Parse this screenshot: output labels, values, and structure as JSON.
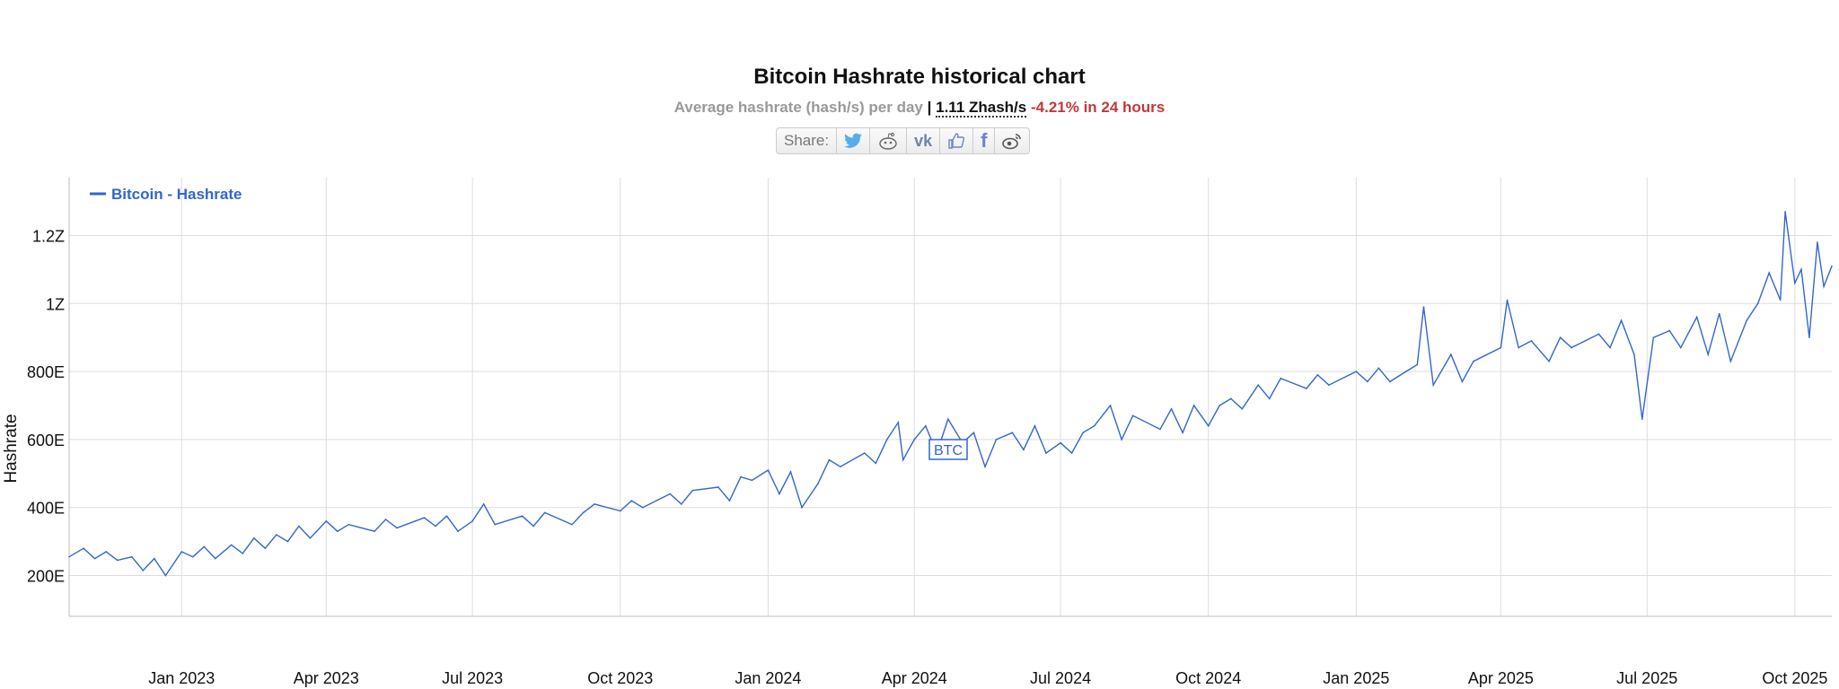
{
  "header": {
    "title": "Bitcoin Hashrate historical chart",
    "subtitle_label": "Average hashrate (hash/s) per day",
    "separator": "|",
    "current_value": "1.11 Zhash/s",
    "change": "-4.21% in 24 hours",
    "change_color": "#c0393b"
  },
  "share": {
    "label": "Share:",
    "icons": [
      "twitter-icon",
      "reddit-icon",
      "vk-icon",
      "like-icon",
      "facebook-icon",
      "weibo-icon"
    ]
  },
  "chart_data": {
    "type": "line",
    "title": "Bitcoin Hashrate historical chart",
    "ylabel": "Hashrate",
    "xlabel": "",
    "legend": {
      "position": "top-left",
      "entries": [
        "Bitcoin - Hashrate"
      ]
    },
    "grid": true,
    "line_color": "#3366cc",
    "y_unit": "EH/s",
    "ylim": [
      80,
      1370
    ],
    "xlim": [
      "2022-10-23",
      "2025-10-24"
    ],
    "y_ticks": [
      200,
      400,
      600,
      800,
      1000,
      1200
    ],
    "y_tick_labels": [
      "200E",
      "400E",
      "600E",
      "800E",
      "1Z",
      "1.2Z"
    ],
    "x_ticks": [
      "2023-01-01",
      "2023-04-01",
      "2023-07-01",
      "2023-10-01",
      "2024-01-01",
      "2024-04-01",
      "2024-07-01",
      "2024-10-01",
      "2025-01-01",
      "2025-04-01",
      "2025-07-01",
      "2025-10-01"
    ],
    "x_tick_labels": [
      "Jan 2023",
      "Apr 2023",
      "Jul 2023",
      "Oct 2023",
      "Jan 2024",
      "Apr 2024",
      "Jul 2024",
      "Oct 2024",
      "Jan 2025",
      "Apr 2025",
      "Jul 2025",
      "Oct 2025"
    ],
    "annotation": "BTC",
    "series": [
      {
        "name": "Bitcoin - Hashrate",
        "points": [
          [
            "2022-10-23",
            255
          ],
          [
            "2022-11-01",
            280
          ],
          [
            "2022-11-08",
            250
          ],
          [
            "2022-11-15",
            270
          ],
          [
            "2022-11-22",
            245
          ],
          [
            "2022-12-01",
            255
          ],
          [
            "2022-12-08",
            215
          ],
          [
            "2022-12-15",
            250
          ],
          [
            "2022-12-22",
            200
          ],
          [
            "2023-01-01",
            270
          ],
          [
            "2023-01-08",
            255
          ],
          [
            "2023-01-15",
            285
          ],
          [
            "2023-01-22",
            250
          ],
          [
            "2023-02-01",
            290
          ],
          [
            "2023-02-08",
            265
          ],
          [
            "2023-02-15",
            310
          ],
          [
            "2023-02-22",
            280
          ],
          [
            "2023-03-01",
            320
          ],
          [
            "2023-03-08",
            300
          ],
          [
            "2023-03-15",
            345
          ],
          [
            "2023-03-22",
            310
          ],
          [
            "2023-04-01",
            360
          ],
          [
            "2023-04-08",
            330
          ],
          [
            "2023-04-15",
            350
          ],
          [
            "2023-05-01",
            330
          ],
          [
            "2023-05-08",
            365
          ],
          [
            "2023-05-15",
            340
          ],
          [
            "2023-06-01",
            370
          ],
          [
            "2023-06-08",
            345
          ],
          [
            "2023-06-15",
            375
          ],
          [
            "2023-06-22",
            330
          ],
          [
            "2023-07-01",
            360
          ],
          [
            "2023-07-08",
            410
          ],
          [
            "2023-07-15",
            350
          ],
          [
            "2023-08-01",
            375
          ],
          [
            "2023-08-08",
            345
          ],
          [
            "2023-08-15",
            385
          ],
          [
            "2023-09-01",
            350
          ],
          [
            "2023-09-08",
            385
          ],
          [
            "2023-09-15",
            410
          ],
          [
            "2023-10-01",
            390
          ],
          [
            "2023-10-08",
            420
          ],
          [
            "2023-10-15",
            400
          ],
          [
            "2023-11-01",
            440
          ],
          [
            "2023-11-08",
            410
          ],
          [
            "2023-11-15",
            450
          ],
          [
            "2023-12-01",
            460
          ],
          [
            "2023-12-08",
            420
          ],
          [
            "2023-12-15",
            490
          ],
          [
            "2023-12-22",
            480
          ],
          [
            "2024-01-01",
            510
          ],
          [
            "2024-01-08",
            440
          ],
          [
            "2024-01-15",
            505
          ],
          [
            "2024-01-22",
            400
          ],
          [
            "2024-02-01",
            470
          ],
          [
            "2024-02-08",
            540
          ],
          [
            "2024-02-15",
            520
          ],
          [
            "2024-03-01",
            560
          ],
          [
            "2024-03-08",
            530
          ],
          [
            "2024-03-15",
            600
          ],
          [
            "2024-03-22",
            650
          ],
          [
            "2024-03-25",
            540
          ],
          [
            "2024-04-01",
            600
          ],
          [
            "2024-04-08",
            640
          ],
          [
            "2024-04-15",
            560
          ],
          [
            "2024-04-22",
            660
          ],
          [
            "2024-05-01",
            590
          ],
          [
            "2024-05-08",
            620
          ],
          [
            "2024-05-15",
            520
          ],
          [
            "2024-05-22",
            600
          ],
          [
            "2024-06-01",
            620
          ],
          [
            "2024-06-08",
            570
          ],
          [
            "2024-06-15",
            640
          ],
          [
            "2024-06-22",
            560
          ],
          [
            "2024-07-01",
            590
          ],
          [
            "2024-07-08",
            560
          ],
          [
            "2024-07-15",
            620
          ],
          [
            "2024-07-22",
            640
          ],
          [
            "2024-08-01",
            700
          ],
          [
            "2024-08-08",
            600
          ],
          [
            "2024-08-15",
            670
          ],
          [
            "2024-09-01",
            630
          ],
          [
            "2024-09-08",
            690
          ],
          [
            "2024-09-15",
            620
          ],
          [
            "2024-09-22",
            700
          ],
          [
            "2024-10-01",
            640
          ],
          [
            "2024-10-08",
            700
          ],
          [
            "2024-10-15",
            720
          ],
          [
            "2024-10-22",
            690
          ],
          [
            "2024-11-01",
            760
          ],
          [
            "2024-11-08",
            720
          ],
          [
            "2024-11-15",
            780
          ],
          [
            "2024-12-01",
            750
          ],
          [
            "2024-12-08",
            790
          ],
          [
            "2024-12-15",
            760
          ],
          [
            "2025-01-01",
            800
          ],
          [
            "2025-01-08",
            770
          ],
          [
            "2025-01-15",
            810
          ],
          [
            "2025-01-22",
            770
          ],
          [
            "2025-02-01",
            800
          ],
          [
            "2025-02-08",
            820
          ],
          [
            "2025-02-12",
            990
          ],
          [
            "2025-02-18",
            760
          ],
          [
            "2025-03-01",
            850
          ],
          [
            "2025-03-08",
            770
          ],
          [
            "2025-03-15",
            830
          ],
          [
            "2025-04-01",
            870
          ],
          [
            "2025-04-05",
            1010
          ],
          [
            "2025-04-12",
            870
          ],
          [
            "2025-04-20",
            890
          ],
          [
            "2025-05-01",
            830
          ],
          [
            "2025-05-08",
            900
          ],
          [
            "2025-05-15",
            870
          ],
          [
            "2025-06-01",
            910
          ],
          [
            "2025-06-08",
            870
          ],
          [
            "2025-06-15",
            950
          ],
          [
            "2025-06-23",
            850
          ],
          [
            "2025-06-28",
            660
          ],
          [
            "2025-07-05",
            900
          ],
          [
            "2025-07-15",
            920
          ],
          [
            "2025-07-22",
            870
          ],
          [
            "2025-08-01",
            960
          ],
          [
            "2025-08-08",
            850
          ],
          [
            "2025-08-15",
            970
          ],
          [
            "2025-08-22",
            830
          ],
          [
            "2025-09-01",
            950
          ],
          [
            "2025-09-08",
            1000
          ],
          [
            "2025-09-15",
            1090
          ],
          [
            "2025-09-22",
            1010
          ],
          [
            "2025-09-25",
            1270
          ],
          [
            "2025-10-01",
            1060
          ],
          [
            "2025-10-05",
            1100
          ],
          [
            "2025-10-10",
            900
          ],
          [
            "2025-10-15",
            1180
          ],
          [
            "2025-10-19",
            1050
          ],
          [
            "2025-10-24",
            1110
          ]
        ]
      }
    ]
  }
}
